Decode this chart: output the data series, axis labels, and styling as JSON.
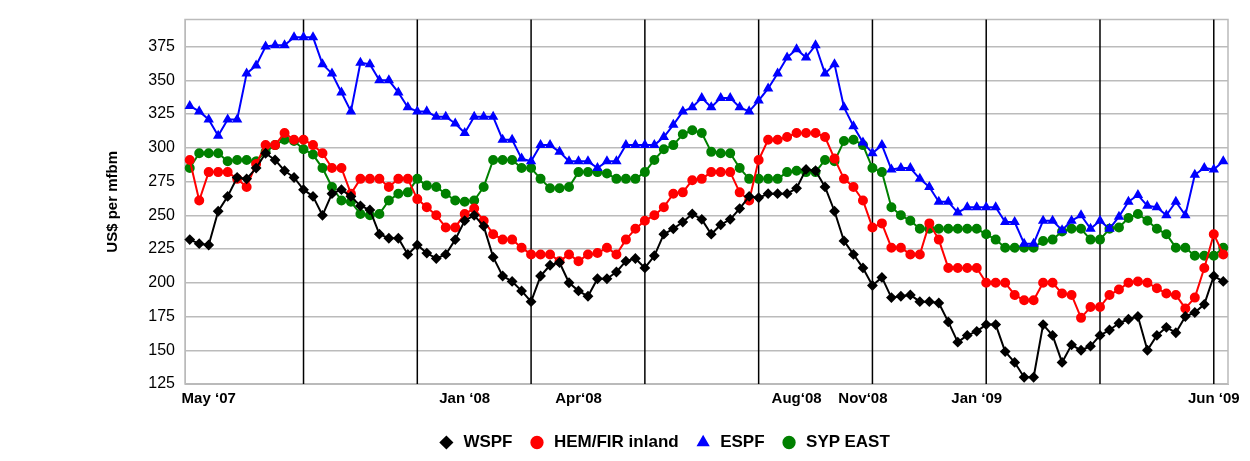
{
  "chart_data": {
    "type": "line",
    "ylabel": "US$ per mfbm",
    "ylim": [
      125,
      395
    ],
    "categories": [
      null,
      null,
      "May ‘07",
      null,
      null,
      null,
      null,
      null,
      null,
      null,
      null,
      null,
      null,
      null,
      null,
      null,
      null,
      null,
      null,
      null,
      null,
      null,
      null,
      null,
      null,
      null,
      null,
      null,
      null,
      "Jan ‘08",
      null,
      null,
      null,
      null,
      null,
      null,
      null,
      null,
      null,
      null,
      null,
      "Apr‘08",
      null,
      null,
      null,
      null,
      null,
      null,
      null,
      null,
      null,
      null,
      null,
      null,
      null,
      null,
      null,
      null,
      null,
      null,
      null,
      null,
      null,
      null,
      "Aug‘08",
      null,
      null,
      null,
      null,
      null,
      null,
      "Nov‘08",
      null,
      null,
      null,
      null,
      null,
      null,
      null,
      null,
      null,
      null,
      null,
      "Jan ‘09",
      null,
      null,
      null,
      null,
      null,
      null,
      null,
      null,
      null,
      null,
      null,
      null,
      null,
      null,
      null,
      null,
      null,
      null,
      null,
      null,
      null,
      null,
      null,
      null,
      "Jun ‘09",
      null
    ],
    "yticks": [
      125,
      150,
      175,
      200,
      225,
      250,
      275,
      300,
      325,
      350,
      375
    ],
    "grid": "y",
    "legend": "bottom",
    "line_style": "solid",
    "series": [
      {
        "name": "WSPF",
        "color": "#000000",
        "marker": "diamond",
        "values": [
          232,
          229,
          228,
          253,
          264,
          278,
          277,
          285,
          296,
          291,
          283,
          278,
          269,
          264,
          250,
          266,
          269,
          264,
          257,
          254,
          236,
          233,
          233,
          221,
          228,
          222,
          218,
          221,
          232,
          246,
          250,
          242,
          219,
          205,
          201,
          194,
          186,
          205,
          213,
          215,
          200,
          194,
          190,
          203,
          203,
          208,
          216,
          218,
          211,
          220,
          236,
          240,
          245,
          251,
          247,
          236,
          243,
          247,
          255,
          264,
          263,
          266,
          266,
          266,
          270,
          284,
          283,
          271,
          253,
          231,
          221,
          211,
          198,
          204,
          189,
          190,
          191,
          186,
          186,
          185,
          171,
          156,
          161,
          164,
          169,
          169,
          149,
          141,
          130,
          130,
          169,
          161,
          141,
          154,
          150,
          153,
          161,
          165,
          170,
          173,
          175,
          150,
          161,
          167,
          163,
          175,
          178,
          184,
          205,
          201
        ]
      },
      {
        "name": "HEM/FIR inland",
        "color": "#ff0000",
        "marker": "circle",
        "values": [
          291,
          261,
          282,
          282,
          282,
          277,
          271,
          288,
          302,
          302,
          311,
          306,
          306,
          302,
          296,
          285,
          285,
          266,
          277,
          277,
          277,
          271,
          277,
          277,
          262,
          256,
          250,
          241,
          241,
          251,
          255,
          246,
          236,
          232,
          232,
          226,
          221,
          221,
          221,
          216,
          221,
          216,
          221,
          222,
          226,
          221,
          232,
          240,
          246,
          250,
          256,
          266,
          267,
          276,
          277,
          282,
          282,
          282,
          267,
          261,
          291,
          306,
          306,
          308,
          311,
          311,
          311,
          308,
          292,
          277,
          271,
          261,
          241,
          244,
          226,
          226,
          221,
          221,
          244,
          232,
          211,
          211,
          211,
          211,
          200,
          200,
          200,
          191,
          187,
          187,
          200,
          200,
          192,
          191,
          174,
          182,
          182,
          191,
          195,
          200,
          201,
          200,
          196,
          192,
          191,
          181,
          189,
          211,
          236,
          221
        ]
      },
      {
        "name": "ESPF",
        "color": "#0000ff",
        "marker": "triangle",
        "values": [
          331,
          327,
          321,
          309,
          321,
          321,
          355,
          361,
          375,
          376,
          376,
          382,
          382,
          382,
          362,
          355,
          341,
          327,
          363,
          362,
          350,
          350,
          341,
          330,
          327,
          327,
          323,
          323,
          318,
          311,
          323,
          323,
          323,
          306,
          306,
          292,
          290,
          302,
          302,
          297,
          290,
          290,
          290,
          285,
          290,
          290,
          302,
          302,
          302,
          302,
          308,
          317,
          327,
          330,
          337,
          330,
          337,
          337,
          330,
          327,
          335,
          344,
          355,
          367,
          373,
          367,
          376,
          355,
          362,
          330,
          316,
          304,
          296,
          302,
          284,
          285,
          285,
          277,
          271,
          260,
          260,
          252,
          256,
          256,
          256,
          256,
          245,
          245,
          229,
          229,
          246,
          246,
          239,
          246,
          250,
          240,
          246,
          240,
          249,
          260,
          265,
          257,
          256,
          250,
          260,
          250,
          280,
          285,
          284,
          290
        ]
      },
      {
        "name": "SYP EAST",
        "color": "#008000",
        "marker": "circle",
        "values": [
          285,
          296,
          296,
          296,
          290,
          291,
          291,
          290,
          297,
          302,
          306,
          305,
          299,
          295,
          285,
          271,
          261,
          260,
          251,
          250,
          251,
          261,
          266,
          267,
          277,
          272,
          271,
          266,
          261,
          260,
          261,
          271,
          291,
          291,
          291,
          285,
          285,
          277,
          270,
          270,
          271,
          282,
          282,
          282,
          281,
          277,
          277,
          277,
          282,
          291,
          299,
          302,
          310,
          313,
          311,
          297,
          296,
          296,
          285,
          277,
          277,
          277,
          277,
          282,
          283,
          282,
          282,
          291,
          290,
          305,
          306,
          302,
          285,
          282,
          256,
          250,
          246,
          240,
          240,
          240,
          240,
          240,
          240,
          240,
          236,
          232,
          226,
          226,
          226,
          226,
          231,
          232,
          238,
          240,
          240,
          232,
          232,
          240,
          241,
          248,
          251,
          246,
          240,
          236,
          226,
          226,
          220,
          220,
          220,
          226
        ]
      }
    ]
  }
}
